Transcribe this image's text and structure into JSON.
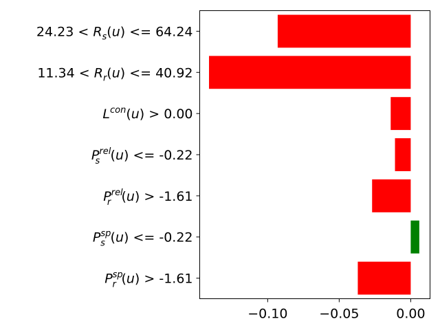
{
  "chart_data": {
    "type": "bar",
    "orientation": "horizontal",
    "categories": [
      {
        "base": "24.23 < R",
        "sub": "s",
        "sup": "",
        "suffix": "(u) <= 64.24"
      },
      {
        "base": "11.34 < R",
        "sub": "r",
        "sup": "",
        "suffix": "(u) <= 40.92"
      },
      {
        "base": "L",
        "sub": "",
        "sup": "con",
        "suffix": "(u) > 0.00"
      },
      {
        "base": "P",
        "sub": "s",
        "sup": "rel",
        "suffix": "(u) <= -0.22"
      },
      {
        "base": "P",
        "sub": "r",
        "sup": "rel",
        "suffix": "(u) > -1.61"
      },
      {
        "base": "P",
        "sub": "s",
        "sup": "sp",
        "suffix": "(u) <= -0.22"
      },
      {
        "base": "P",
        "sub": "r",
        "sup": "sp",
        "suffix": "(u) > -1.61"
      }
    ],
    "values": [
      -0.093,
      -0.141,
      -0.014,
      -0.011,
      -0.027,
      0.006,
      -0.037
    ],
    "colors": [
      "#ff0000",
      "#ff0000",
      "#ff0000",
      "#ff0000",
      "#ff0000",
      "#008000",
      "#ff0000"
    ],
    "xlim": [
      -0.1475,
      0.0135
    ],
    "xticks": [
      -0.1,
      -0.05,
      0.0
    ],
    "xtick_labels": [
      "−0.10",
      "−0.05",
      "0.00"
    ],
    "grid": false,
    "title": "",
    "xlabel": "",
    "ylabel": ""
  }
}
